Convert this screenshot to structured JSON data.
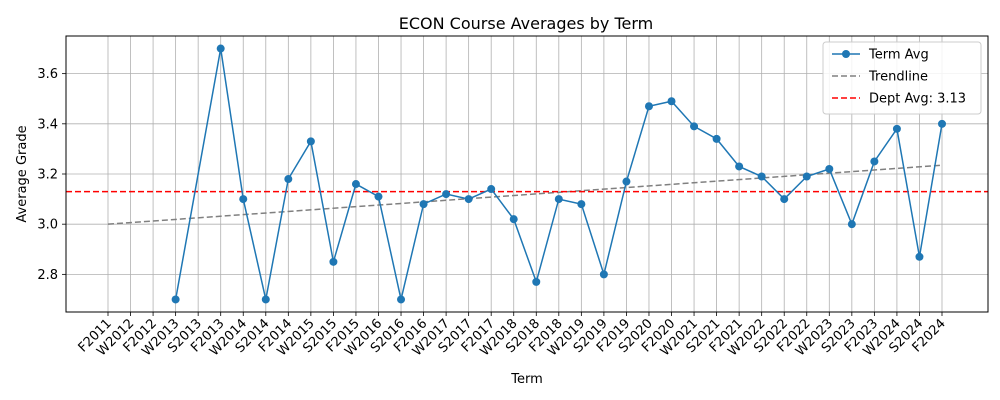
{
  "chart_data": {
    "type": "line",
    "title": "ECON Course Averages by Term",
    "xlabel": "Term",
    "ylabel": "Average Grade",
    "ylim": [
      2.65,
      3.75
    ],
    "yticks": [
      "2.8",
      "3.0",
      "3.2",
      "3.4",
      "3.6"
    ],
    "grid": true,
    "legend_position": "top-right",
    "categories": [
      "F2011",
      "W2012",
      "F2012",
      "W2013",
      "S2013",
      "F2013",
      "W2014",
      "S2014",
      "F2014",
      "W2015",
      "S2015",
      "F2015",
      "W2016",
      "S2016",
      "F2016",
      "W2017",
      "S2017",
      "F2017",
      "W2018",
      "S2018",
      "F2018",
      "W2019",
      "S2019",
      "F2019",
      "S2020",
      "F2020",
      "W2021",
      "S2021",
      "F2021",
      "W2022",
      "S2022",
      "F2022",
      "W2023",
      "S2023",
      "F2023",
      "W2024",
      "S2024",
      "F2024"
    ],
    "series": [
      {
        "name": "Term Avg",
        "color": "#1f77b4",
        "values": [
          null,
          null,
          null,
          2.7,
          null,
          3.7,
          3.1,
          2.7,
          3.18,
          3.33,
          2.85,
          3.16,
          3.11,
          2.7,
          3.08,
          3.12,
          3.1,
          3.14,
          3.02,
          2.77,
          3.1,
          3.08,
          2.8,
          3.17,
          3.47,
          3.49,
          3.39,
          3.34,
          3.23,
          3.19,
          3.1,
          3.19,
          3.22,
          3.0,
          3.25,
          3.38,
          2.87,
          3.4
        ]
      },
      {
        "name": "Trendline",
        "color": "#808080",
        "start": 3.0,
        "end": 3.235
      },
      {
        "name": "Dept Avg: 3.13",
        "color": "#ff0000",
        "value": 3.13
      }
    ]
  }
}
